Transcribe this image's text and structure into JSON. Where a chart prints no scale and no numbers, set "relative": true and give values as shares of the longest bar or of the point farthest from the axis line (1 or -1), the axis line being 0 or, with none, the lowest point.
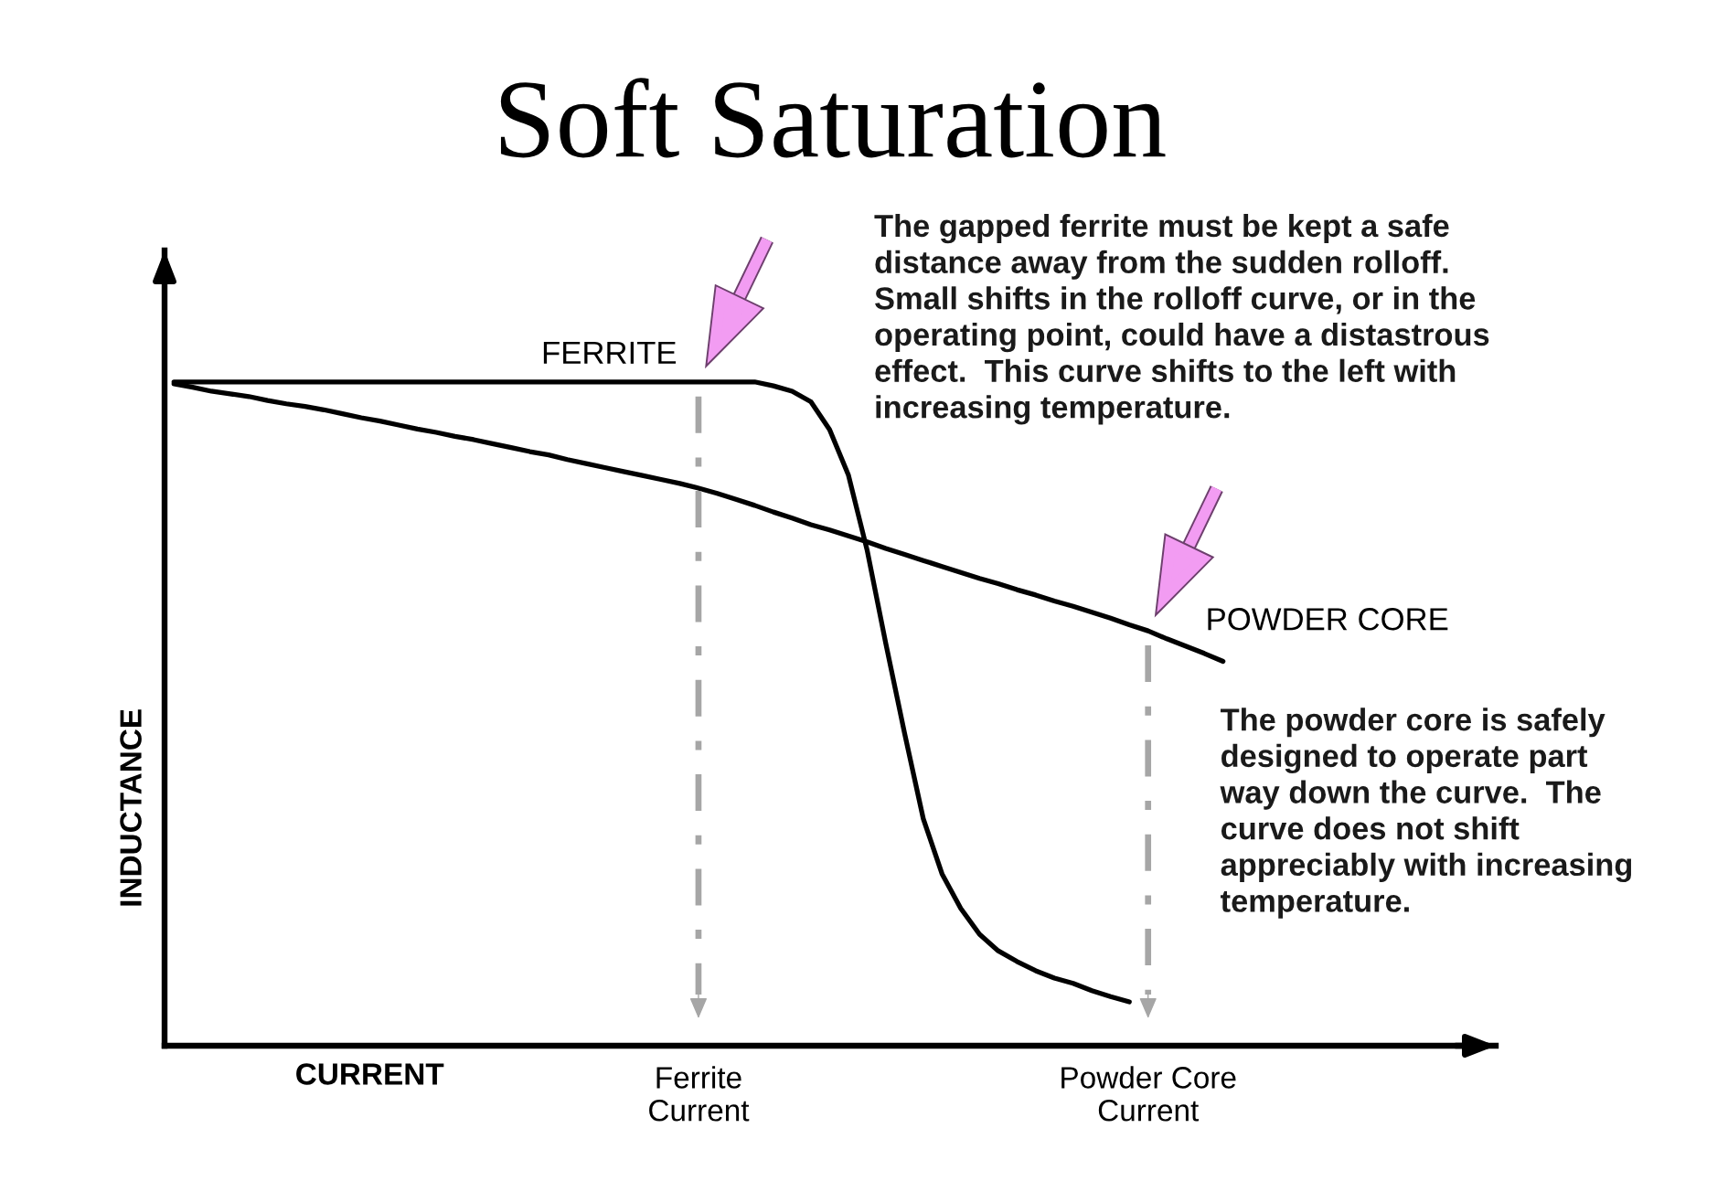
{
  "chart_data": {
    "type": "line",
    "title": "Soft Saturation",
    "xlabel": "CURRENT",
    "ylabel": "INDUCTANCE",
    "relative": true,
    "tick_labels": "x",
    "categories": [
      null,
      null,
      null,
      null,
      null,
      null,
      null,
      null,
      null,
      null,
      null,
      null,
      null,
      null,
      null,
      null,
      null,
      null,
      null,
      null,
      null,
      null,
      null,
      null,
      null,
      null,
      null,
      null,
      "Ferrite\nCurrent",
      null,
      null,
      null,
      null,
      null,
      null,
      null,
      null,
      null,
      null,
      null,
      null,
      null,
      null,
      null,
      null,
      null,
      null,
      null,
      null,
      null,
      null,
      null,
      "Powder Core\nCurrent",
      null,
      null,
      null,
      null
    ],
    "series": [
      {
        "name": "FERRITE",
        "color": "#000000",
        "values": [
          1.0,
          1.0,
          1.0,
          1.0,
          1.0,
          1.0,
          1.0,
          1.0,
          1.0,
          1.0,
          1.0,
          1.0,
          1.0,
          1.0,
          1.0,
          1.0,
          1.0,
          1.0,
          1.0,
          1.0,
          1.0,
          1.0,
          1.0,
          1.0,
          1.0,
          1.0,
          1.0,
          1.0,
          1.0,
          1.0,
          1.0,
          1.0,
          0.994,
          0.986,
          0.97,
          0.928,
          0.86,
          0.747,
          0.606,
          0.471,
          0.342,
          0.259,
          0.207,
          0.168,
          0.143,
          0.127,
          0.113,
          0.102,
          0.094,
          0.083,
          0.074,
          0.066,
          null,
          null,
          null,
          null,
          null
        ]
      },
      {
        "name": "POWDER CORE",
        "color": "#000000",
        "values": [
          0.997,
          0.992,
          0.986,
          0.982,
          0.978,
          0.972,
          0.967,
          0.963,
          0.958,
          0.952,
          0.946,
          0.941,
          0.935,
          0.929,
          0.924,
          0.918,
          0.913,
          0.907,
          0.901,
          0.895,
          0.89,
          0.883,
          0.877,
          0.871,
          0.865,
          0.859,
          0.853,
          0.847,
          0.84,
          0.832,
          0.823,
          0.814,
          0.804,
          0.795,
          0.785,
          0.777,
          0.768,
          0.759,
          0.749,
          0.74,
          0.731,
          0.722,
          0.713,
          0.704,
          0.696,
          0.687,
          0.679,
          0.67,
          0.662,
          0.653,
          0.644,
          0.634,
          0.625,
          0.613,
          0.602,
          0.591,
          0.579
        ]
      }
    ],
    "ref_lines": [
      {
        "axis": "x",
        "value": "Ferrite\nCurrent",
        "color": "#a6a6a6",
        "line_style": "dashed"
      },
      {
        "axis": "x",
        "value": "Powder Core\nCurrent",
        "color": "#a6a6a6",
        "line_style": "dashed"
      }
    ],
    "annotations": [
      "The gapped ferrite must be kept a safe\ndistance away from the sudden rolloff.\nSmall shifts in the rolloff curve, or in the\noperating point, could have a distastrous\neffect.  This curve shifts to the left with\nincreasing temperature.",
      "The powder core is safely\ndesigned to operate part\nway down the curve.  The\ncurve does not shift\nappreciably with increasing\ntemperature."
    ]
  }
}
